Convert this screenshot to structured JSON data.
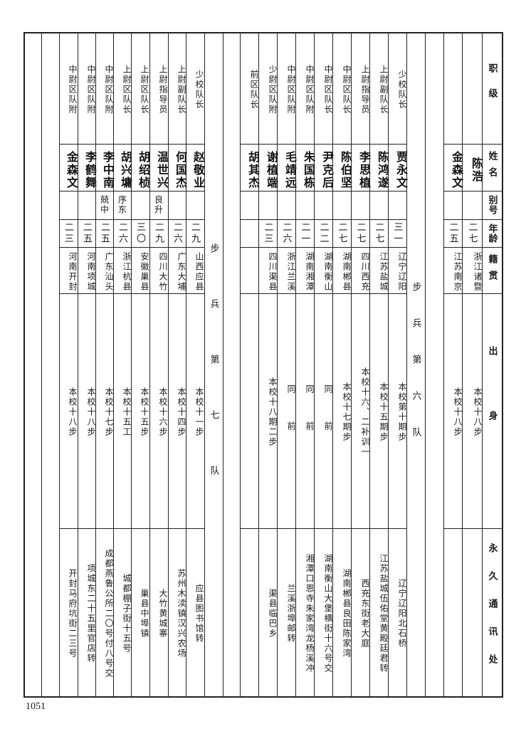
{
  "header": {
    "rank": "职级",
    "name": "姓名",
    "alias": "别号",
    "age": "年龄",
    "native": "籍贯",
    "origin": "出身",
    "address": "永久通讯处"
  },
  "top_entries": [
    {
      "rank": "",
      "name": "陈浩",
      "alias": "",
      "age": "二七",
      "native": "浙江诸暨",
      "origin": "本校十八步",
      "address": ""
    },
    {
      "rank": "",
      "name": "金森文",
      "alias": "",
      "age": "二五",
      "native": "江苏南京",
      "origin": "本校十八步",
      "address": ""
    }
  ],
  "sections": [
    {
      "title": "步兵第六队",
      "entries": [
        {
          "rank": "少校队长",
          "name": "贾永文",
          "alias": "",
          "age": "三一",
          "native": "辽宁辽阳",
          "origin": "本校第十期步",
          "address": "辽宁辽阳北石桥"
        },
        {
          "rank": "上尉副队长",
          "name": "陈鸿遂",
          "alias": "",
          "age": "二七",
          "native": "江苏盐城",
          "origin": "本校十五期步",
          "address": "江苏盐城伍佑堂黄殿廷君转"
        },
        {
          "rank": "上尉指导员",
          "name": "李思植",
          "alias": "",
          "age": "二七",
          "native": "四川西充",
          "origin": "本校十六、二补训一",
          "address": "西充东街老大庭"
        },
        {
          "rank": "中尉区队长",
          "name": "陈伯坚",
          "alias": "",
          "age": "二七",
          "native": "湖南郴县",
          "origin": "本校十七期步",
          "address": "湖南郴县良田陈家湾"
        },
        {
          "rank": "中尉区队长",
          "name": "尹克后",
          "alias": "",
          "age": "二二",
          "native": "湖南衡山",
          "origin": "同　前",
          "address": "湖南衡山大堡横街十六号交"
        },
        {
          "rank": "中尉区队附",
          "name": "朱国栋",
          "alias": "",
          "age": "二一",
          "native": "湖南湘潭",
          "origin": "同　前",
          "address": "湘潭口恩寺朱家湾龙杨溪冲"
        },
        {
          "rank": "中尉区队附",
          "name": "毛靖远",
          "alias": "",
          "age": "二六",
          "native": "浙江兰溪",
          "origin": "同　前",
          "address": "兰溪浙埠邮转"
        },
        {
          "rank": "少尉区队附",
          "name": "谢植端",
          "alias": "",
          "age": "二三",
          "native": "四川渠县",
          "origin": "本校十八期二步",
          "address": "渠县临巴乡"
        },
        {
          "rank": "前区队长",
          "name": "胡其杰",
          "alias": "",
          "age": "",
          "native": "",
          "origin": "",
          "address": ""
        }
      ]
    },
    {
      "title": "步兵第七队",
      "entries": [
        {
          "rank": "少校队长",
          "name": "赵敬业",
          "alias": "",
          "age": "二九",
          "native": "山西应县",
          "origin": "本校十一步",
          "address": "应县图书馆转"
        },
        {
          "rank": "上尉副队长",
          "name": "何国杰",
          "alias": "",
          "age": "二六",
          "native": "广东大埔",
          "origin": "本校十四步",
          "address": "苏州木渎镇汉兴农场"
        },
        {
          "rank": "上尉指导员",
          "name": "温世兴",
          "alias": "良升",
          "age": "二九",
          "native": "四川大竹",
          "origin": "本校十六步",
          "address": "大竹黄城寨"
        },
        {
          "rank": "上尉区队长",
          "name": "胡绍桢",
          "alias": "",
          "age": "三〇",
          "native": "安徽巢县",
          "origin": "本校十五步",
          "address": "巢县中埠镇"
        },
        {
          "rank": "上尉区队长",
          "name": "胡兴墉",
          "alias": "序东",
          "age": "二六",
          "native": "浙江杭县",
          "origin": "本校十五工",
          "address": "城都棚子街十五号"
        },
        {
          "rank": "中尉区队附",
          "name": "李中南",
          "alias": "兢中",
          "age": "二五",
          "native": "广东汕头",
          "origin": "本校十七步",
          "address": "成都燕鲁公所二〇号付八号交"
        },
        {
          "rank": "中尉区队附",
          "name": "李鹤舞",
          "alias": "",
          "age": "二五",
          "native": "河南项城",
          "origin": "本校十八步",
          "address": "项城东二十五里官店转"
        },
        {
          "rank": "中尉区队附",
          "name": "金森文",
          "alias": "",
          "age": "二三",
          "native": "河南开封",
          "origin": "本校十八步",
          "address": "开封马府坑街二三号"
        }
      ]
    }
  ],
  "page_number": "1051"
}
